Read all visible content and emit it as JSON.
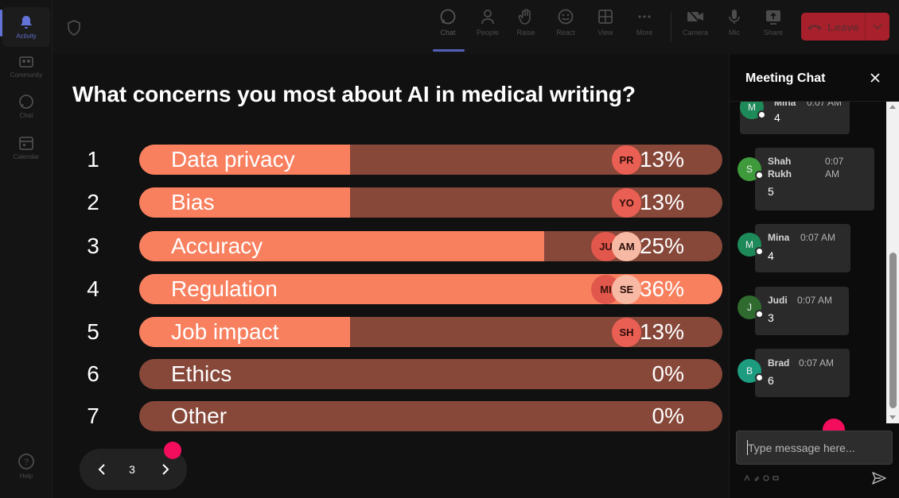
{
  "rail": {
    "items": [
      {
        "label": "Activity",
        "icon": "bell-icon",
        "active": true
      },
      {
        "label": "Community",
        "icon": "community-icon"
      },
      {
        "label": "Chat",
        "icon": "chat-icon"
      },
      {
        "label": "Calendar",
        "icon": "calendar-icon"
      },
      {
        "label": "Help",
        "icon": "help-icon"
      }
    ]
  },
  "toolbar": {
    "shield_icon": "shield-icon",
    "buttons": [
      {
        "label": "Chat",
        "icon": "chat-icon",
        "active": true
      },
      {
        "label": "People",
        "icon": "people-icon"
      },
      {
        "label": "Raise",
        "icon": "hand-icon"
      },
      {
        "label": "React",
        "icon": "smile-icon"
      },
      {
        "label": "View",
        "icon": "grid-icon"
      },
      {
        "label": "More",
        "icon": "more-icon"
      },
      {
        "label": "Camera",
        "icon": "camera-off-icon"
      },
      {
        "label": "Mic",
        "icon": "mic-icon"
      },
      {
        "label": "Share",
        "icon": "share-icon"
      }
    ],
    "leave_label": "Leave"
  },
  "poll": {
    "question": "What concerns you most about AI in medical writing?",
    "options": [
      {
        "num": "1",
        "label": "Data privacy",
        "percent": 13,
        "percent_label": "13%",
        "avatars": [
          "PR"
        ]
      },
      {
        "num": "2",
        "label": "Bias",
        "percent": 13,
        "percent_label": "13%",
        "avatars": [
          "YO"
        ]
      },
      {
        "num": "3",
        "label": "Accuracy",
        "percent": 25,
        "percent_label": "25%",
        "avatars": [
          "JU",
          "AM"
        ]
      },
      {
        "num": "4",
        "label": "Regulation",
        "percent": 36,
        "percent_label": "36%",
        "avatars": [
          "MI",
          "SE"
        ]
      },
      {
        "num": "5",
        "label": "Job impact",
        "percent": 13,
        "percent_label": "13%",
        "avatars": [
          "SH"
        ]
      },
      {
        "num": "6",
        "label": "Ethics",
        "percent": 0,
        "percent_label": "0%",
        "avatars": []
      },
      {
        "num": "7",
        "label": "Other",
        "percent": 0,
        "percent_label": "0%",
        "avatars": []
      }
    ],
    "page": "3"
  },
  "chat": {
    "title": "Meeting Chat",
    "messages": [
      {
        "initial": "M",
        "name": "Mina",
        "time": "0:07 AM",
        "text": "4",
        "color": "#1e8a5a"
      },
      {
        "initial": "S",
        "name": "Shah Rukh",
        "time": "0:07 AM",
        "text": "5",
        "color": "#3f9a3c"
      },
      {
        "initial": "M",
        "name": "Mina",
        "time": "0:07 AM",
        "text": "4",
        "color": "#1e8a5a"
      },
      {
        "initial": "J",
        "name": "Judi",
        "time": "0:07 AM",
        "text": "3",
        "color": "#2f6b2f"
      },
      {
        "initial": "B",
        "name": "Brad",
        "time": "0:07 AM",
        "text": "6",
        "color": "#1d9c80"
      }
    ],
    "input_placeholder": "Type message here...",
    "send_icon": "send-icon"
  },
  "colors": {
    "bar_track": "#87483a",
    "bar_fill": "#f8805f",
    "avatar": "#ea5f53",
    "leave": "#a8202b",
    "accent": "#5360b8",
    "cursor": "#f30d5c"
  }
}
